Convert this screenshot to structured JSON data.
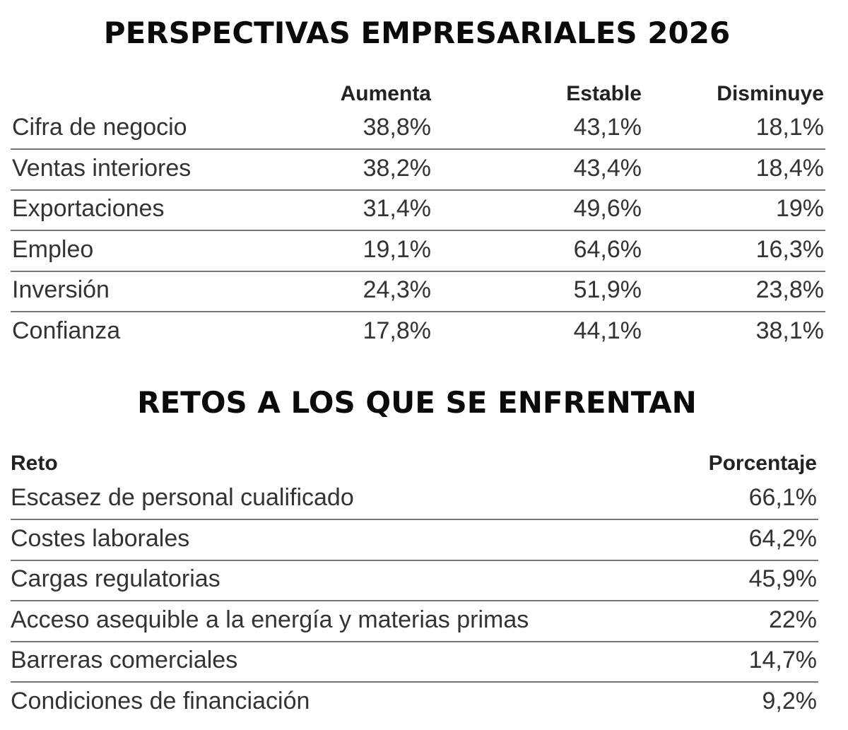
{
  "perspectivas": {
    "title": "PERSPECTIVAS EMPRESARIALES 2026",
    "headers": [
      "Aumenta",
      "Estable",
      "Disminuye"
    ],
    "rows": [
      {
        "label": "Cifra de negocio",
        "aumenta": "38,8%",
        "estable": "43,1%",
        "disminuye": "18,1%"
      },
      {
        "label": "Ventas interiores",
        "aumenta": "38,2%",
        "estable": "43,4%",
        "disminuye": "18,4%"
      },
      {
        "label": "Exportaciones",
        "aumenta": "31,4%",
        "estable": "49,6%",
        "disminuye": "19%"
      },
      {
        "label": "Empleo",
        "aumenta": "19,1%",
        "estable": "64,6%",
        "disminuye": "16,3%"
      },
      {
        "label": "Inversión",
        "aumenta": "24,3%",
        "estable": "51,9%",
        "disminuye": "23,8%"
      },
      {
        "label": "Confianza",
        "aumenta": "17,8%",
        "estable": "44,1%",
        "disminuye": "38,1%"
      }
    ]
  },
  "retos": {
    "title": "RETOS A LOS QUE SE ENFRENTAN",
    "headers": [
      "Reto",
      "Porcentaje"
    ],
    "rows": [
      {
        "label": "Escasez de personal cualificado",
        "value": "66,1%"
      },
      {
        "label": "Costes laborales",
        "value": "64,2%"
      },
      {
        "label": "Cargas regulatorias",
        "value": "45,9%"
      },
      {
        "label": "Acceso asequible a la energía y materias primas",
        "value": "22%"
      },
      {
        "label": "Barreras comerciales",
        "value": "14,7%"
      },
      {
        "label": "Condiciones de financiación",
        "value": "9,2%"
      }
    ]
  }
}
